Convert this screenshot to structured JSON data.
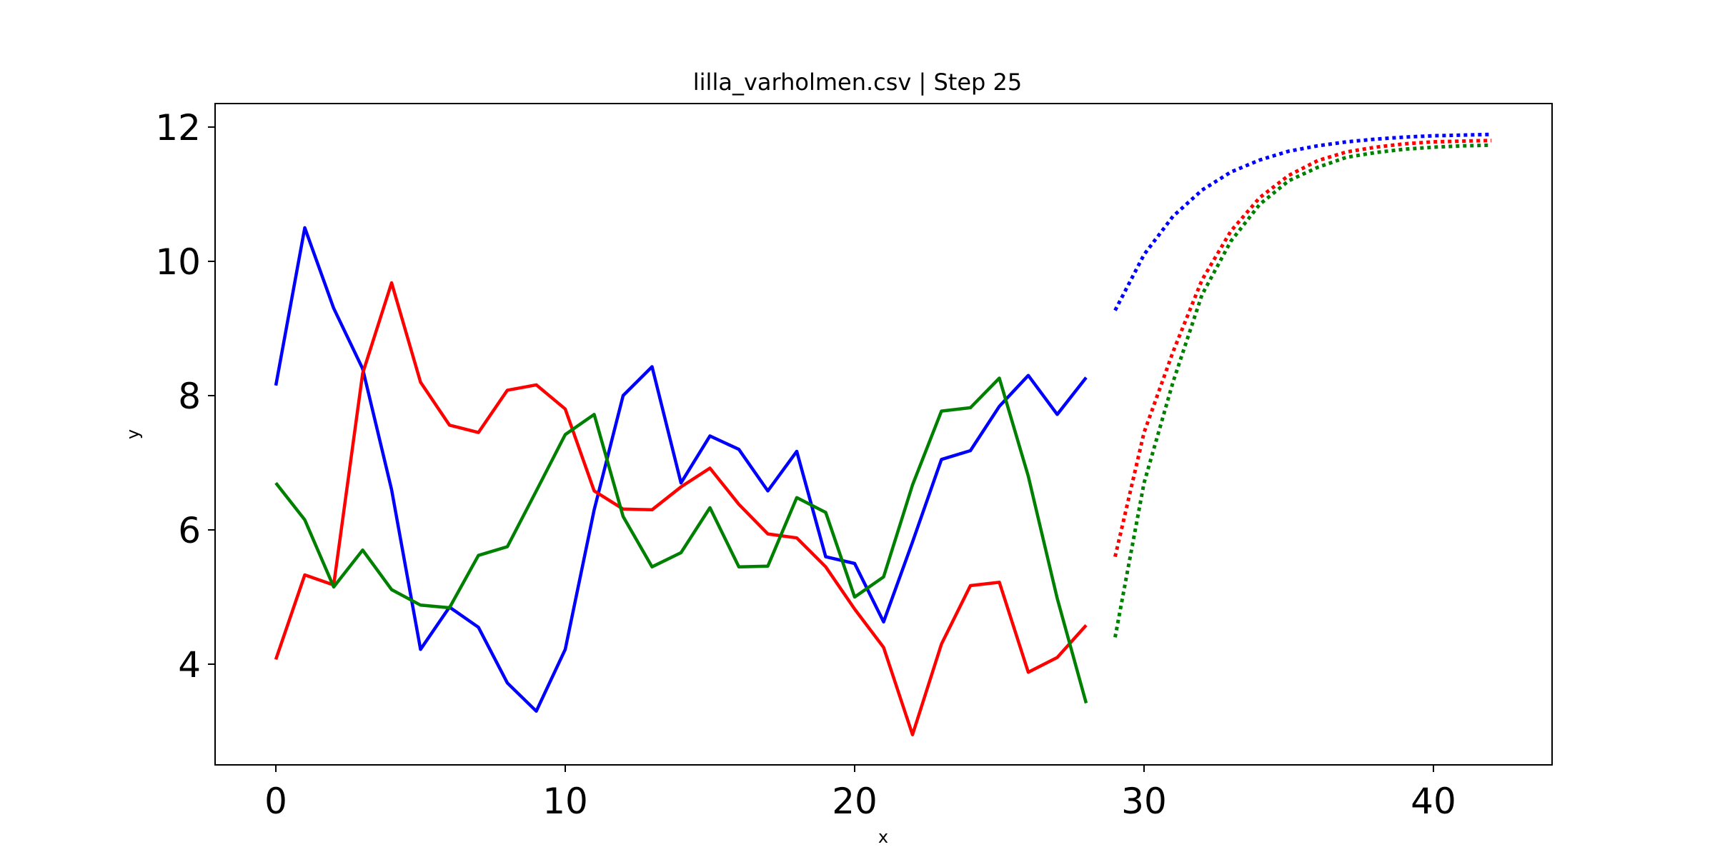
{
  "chart_data": {
    "type": "line",
    "title": "lilla_varholmen.csv | Step 25",
    "xlabel": "x",
    "ylabel": "y",
    "xlim": [
      -2.1,
      44.1
    ],
    "ylim": [
      2.5,
      12.35
    ],
    "xticks": [
      0,
      10,
      20,
      30,
      40
    ],
    "yticks": [
      4,
      6,
      8,
      10,
      12
    ],
    "grid": false,
    "series": [
      {
        "color": "#0000ff",
        "style": "solid",
        "x": [
          0,
          1,
          2,
          3,
          4,
          5,
          6,
          7,
          8,
          9,
          10,
          11,
          12,
          13,
          14,
          15,
          16,
          17,
          18,
          19,
          20,
          21,
          22,
          23,
          24,
          25,
          26,
          27,
          28
        ],
        "y": [
          8.15,
          10.5,
          9.3,
          8.4,
          6.6,
          4.22,
          4.85,
          4.55,
          3.72,
          3.3,
          4.22,
          6.3,
          8.0,
          8.43,
          6.7,
          7.4,
          7.2,
          6.58,
          7.17,
          5.6,
          5.5,
          4.63,
          5.82,
          7.05,
          7.18,
          7.84,
          8.3,
          7.72,
          8.27
        ]
      },
      {
        "color": "#ff0000",
        "style": "solid",
        "x": [
          0,
          1,
          2,
          3,
          4,
          5,
          6,
          7,
          8,
          9,
          10,
          11,
          12,
          13,
          14,
          15,
          16,
          17,
          18,
          19,
          20,
          21,
          22,
          23,
          24,
          25,
          26,
          27,
          28
        ],
        "y": [
          4.07,
          5.33,
          5.18,
          8.33,
          9.68,
          8.2,
          7.56,
          7.45,
          8.08,
          8.16,
          7.8,
          6.58,
          6.31,
          6.3,
          6.64,
          6.92,
          6.38,
          5.94,
          5.88,
          5.45,
          4.82,
          4.25,
          2.95,
          4.3,
          5.17,
          5.22,
          3.88,
          4.1,
          4.58
        ]
      },
      {
        "color": "#008000",
        "style": "solid",
        "x": [
          0,
          1,
          2,
          3,
          4,
          5,
          6,
          7,
          8,
          9,
          10,
          11,
          12,
          13,
          14,
          15,
          16,
          17,
          18,
          19,
          20,
          21,
          22,
          23,
          24,
          25,
          26,
          27,
          28
        ],
        "y": [
          6.7,
          6.15,
          5.15,
          5.7,
          5.11,
          4.88,
          4.84,
          5.62,
          5.75,
          6.58,
          7.42,
          7.72,
          6.2,
          5.45,
          5.66,
          6.33,
          5.45,
          5.46,
          6.48,
          6.26,
          5.0,
          5.3,
          6.67,
          7.77,
          7.82,
          8.26,
          6.8,
          4.98,
          3.42
        ]
      },
      {
        "color": "#0000ff",
        "style": "dotted",
        "x": [
          29,
          30,
          31,
          32,
          33,
          34,
          35,
          36,
          37,
          38,
          39,
          40,
          41,
          42
        ],
        "y": [
          9.27,
          10.1,
          10.67,
          11.06,
          11.33,
          11.51,
          11.64,
          11.72,
          11.78,
          11.82,
          11.85,
          11.87,
          11.88,
          11.89
        ]
      },
      {
        "color": "#ff0000",
        "style": "dotted",
        "x": [
          29,
          30,
          31,
          32,
          33,
          34,
          35,
          36,
          37,
          38,
          39,
          40,
          41,
          42
        ],
        "y": [
          5.6,
          7.45,
          8.65,
          9.72,
          10.45,
          10.95,
          11.28,
          11.5,
          11.63,
          11.7,
          11.75,
          11.78,
          11.79,
          11.8
        ]
      },
      {
        "color": "#008000",
        "style": "dotted",
        "x": [
          29,
          30,
          31,
          32,
          33,
          34,
          35,
          36,
          37,
          38,
          39,
          40,
          41,
          42
        ],
        "y": [
          4.4,
          6.7,
          8.2,
          9.5,
          10.3,
          10.85,
          11.2,
          11.4,
          11.55,
          11.62,
          11.67,
          11.7,
          11.72,
          11.73
        ]
      }
    ]
  }
}
